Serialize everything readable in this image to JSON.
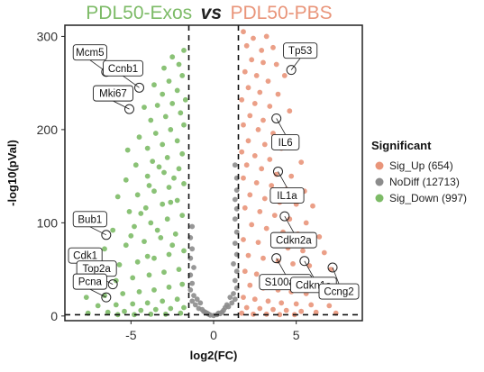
{
  "title": {
    "left": "PDL50-Exos",
    "middle": "vs",
    "right": "PDL50-PBS"
  },
  "colors": {
    "up": "#e9957a",
    "nodiff": "#8c8c8c",
    "down": "#7dbb67",
    "title_left": "#7dbb67",
    "title_right": "#e9957a"
  },
  "chart_data": {
    "type": "scatter",
    "xlabel": "log2(FC)",
    "ylabel": "-log10(pVal)",
    "xlim": [
      -9,
      9
    ],
    "ylim": [
      -5,
      312
    ],
    "x_ticks": [
      -5,
      0,
      5
    ],
    "y_ticks": [
      0,
      100,
      200,
      300
    ],
    "thresholds": {
      "x": [
        -1.5,
        1.5
      ],
      "y": 1.3
    },
    "grid": false,
    "legend": {
      "title": "Significant",
      "position": "right",
      "entries": [
        {
          "label": "Sig_Up (654)",
          "group": "up",
          "count": 654
        },
        {
          "label": "NoDiff (12713)",
          "group": "nodiff",
          "count": 12713
        },
        {
          "label": "Sig_Down (997)",
          "group": "down",
          "count": 997
        }
      ]
    },
    "annotations": [
      {
        "label": "Mcm5",
        "x": -6.5,
        "y": 262
      },
      {
        "label": "Ccnb1",
        "x": -4.5,
        "y": 245
      },
      {
        "label": "Mki67",
        "x": -5.1,
        "y": 222
      },
      {
        "label": "Bub1",
        "x": -6.5,
        "y": 87
      },
      {
        "label": "Cdk1",
        "x": -7.9,
        "y": 48
      },
      {
        "label": "Top2a",
        "x": -6.1,
        "y": 34
      },
      {
        "label": "Pcna",
        "x": -6.5,
        "y": 20
      },
      {
        "label": "Tp53",
        "x": 4.7,
        "y": 264
      },
      {
        "label": "IL6",
        "x": 3.8,
        "y": 212
      },
      {
        "label": "IL1a",
        "x": 3.9,
        "y": 155
      },
      {
        "label": "Cdkn2a",
        "x": 4.3,
        "y": 107
      },
      {
        "label": "S100a10",
        "x": 3.8,
        "y": 62
      },
      {
        "label": "Cdkn1a",
        "x": 5.5,
        "y": 59
      },
      {
        "label": "Ccng2",
        "x": 7.2,
        "y": 52
      }
    ],
    "series": [
      {
        "name": "Sig_Up",
        "group": "up",
        "points": [
          [
            1.8,
            305
          ],
          [
            2.4,
            298
          ],
          [
            3.2,
            300
          ],
          [
            2.0,
            290
          ],
          [
            2.9,
            285
          ],
          [
            3.6,
            288
          ],
          [
            2.3,
            275
          ],
          [
            3.0,
            272
          ],
          [
            3.8,
            270
          ],
          [
            1.9,
            262
          ],
          [
            2.6,
            258
          ],
          [
            4.3,
            258
          ],
          [
            3.3,
            252
          ],
          [
            2.1,
            245
          ],
          [
            2.8,
            240
          ],
          [
            3.9,
            238
          ],
          [
            1.7,
            232
          ],
          [
            2.5,
            228
          ],
          [
            3.4,
            225
          ],
          [
            4.6,
            220
          ],
          [
            2.2,
            215
          ],
          [
            3.0,
            210
          ],
          [
            1.8,
            205
          ],
          [
            2.7,
            200
          ],
          [
            3.6,
            196
          ],
          [
            4.8,
            192
          ],
          [
            2.1,
            188
          ],
          [
            3.1,
            184
          ],
          [
            4.1,
            180
          ],
          [
            1.7,
            176
          ],
          [
            2.5,
            172
          ],
          [
            3.4,
            168
          ],
          [
            5.3,
            165
          ],
          [
            2.0,
            162
          ],
          [
            2.9,
            158
          ],
          [
            3.8,
            152
          ],
          [
            4.7,
            150
          ],
          [
            1.8,
            148
          ],
          [
            2.6,
            143
          ],
          [
            3.5,
            140
          ],
          [
            4.4,
            136
          ],
          [
            5.5,
            134
          ],
          [
            2.2,
            130
          ],
          [
            3.1,
            126
          ],
          [
            4.0,
            122
          ],
          [
            5.0,
            120
          ],
          [
            6.0,
            118
          ],
          [
            1.9,
            116
          ],
          [
            2.8,
            112
          ],
          [
            3.7,
            108
          ],
          [
            4.6,
            104
          ],
          [
            5.6,
            100
          ],
          [
            2.3,
            98
          ],
          [
            3.2,
            94
          ],
          [
            4.2,
            90
          ],
          [
            5.1,
            88
          ],
          [
            6.4,
            85
          ],
          [
            1.8,
            82
          ],
          [
            2.7,
            79
          ],
          [
            3.6,
            76
          ],
          [
            4.5,
            73
          ],
          [
            5.4,
            70
          ],
          [
            6.7,
            68
          ],
          [
            2.1,
            65
          ],
          [
            3.0,
            62
          ],
          [
            3.9,
            59
          ],
          [
            4.8,
            56
          ],
          [
            5.8,
            54
          ],
          [
            7.1,
            50
          ],
          [
            1.9,
            48
          ],
          [
            2.6,
            45
          ],
          [
            3.4,
            42
          ],
          [
            4.3,
            40
          ],
          [
            5.2,
            38
          ],
          [
            6.2,
            36
          ],
          [
            2.2,
            33
          ],
          [
            3.0,
            30
          ],
          [
            3.9,
            28
          ],
          [
            4.7,
            26
          ],
          [
            5.6,
            24
          ],
          [
            6.6,
            22
          ],
          [
            1.8,
            20
          ],
          [
            2.5,
            18
          ],
          [
            3.3,
            16
          ],
          [
            4.1,
            14
          ],
          [
            5.0,
            13
          ],
          [
            5.9,
            12
          ],
          [
            7.0,
            11
          ],
          [
            2.0,
            9
          ],
          [
            2.8,
            8
          ],
          [
            3.6,
            7
          ],
          [
            4.4,
            6
          ],
          [
            5.3,
            5
          ],
          [
            6.2,
            4
          ],
          [
            7.4,
            3
          ],
          [
            1.7,
            3
          ],
          [
            2.4,
            2
          ],
          [
            3.2,
            2
          ],
          [
            4.0,
            1.5
          ],
          [
            4.9,
            1.5
          ]
        ]
      },
      {
        "name": "NoDiff",
        "group": "nodiff",
        "points": [
          [
            0.0,
            0.5
          ],
          [
            -0.3,
            2
          ],
          [
            0.3,
            3
          ],
          [
            -0.6,
            5
          ],
          [
            0.6,
            6
          ],
          [
            -0.9,
            8
          ],
          [
            0.9,
            10
          ],
          [
            -1.1,
            12
          ],
          [
            1.1,
            14
          ],
          [
            -1.3,
            16
          ],
          [
            1.3,
            18
          ],
          [
            -0.5,
            4
          ],
          [
            0.5,
            4
          ],
          [
            -1.2,
            22
          ],
          [
            1.2,
            24
          ],
          [
            -1.4,
            28
          ],
          [
            1.4,
            30
          ],
          [
            -1.0,
            18
          ],
          [
            1.0,
            20
          ],
          [
            -1.3,
            35
          ],
          [
            1.3,
            38
          ],
          [
            -1.4,
            44
          ],
          [
            1.4,
            48
          ],
          [
            -1.2,
            52
          ],
          [
            1.2,
            56
          ],
          [
            -1.4,
            62
          ],
          [
            1.4,
            66
          ],
          [
            -1.3,
            72
          ],
          [
            1.3,
            78
          ],
          [
            -1.4,
            84
          ],
          [
            1.4,
            90
          ],
          [
            -1.3,
            96
          ],
          [
            1.3,
            104
          ],
          [
            1.4,
            115
          ],
          [
            1.3,
            125
          ],
          [
            1.4,
            135
          ],
          [
            1.4,
            148
          ],
          [
            1.3,
            162
          ],
          [
            -0.8,
            14
          ],
          [
            0.8,
            12
          ],
          [
            -0.2,
            1
          ],
          [
            0.2,
            1.5
          ],
          [
            -0.4,
            3
          ],
          [
            0.4,
            2.5
          ],
          [
            -0.7,
            7
          ],
          [
            0.7,
            9
          ]
        ]
      },
      {
        "name": "Sig_Down",
        "group": "down",
        "points": [
          [
            -1.8,
            285
          ],
          [
            -2.5,
            278
          ],
          [
            -2.1,
            270
          ],
          [
            -3.0,
            266
          ],
          [
            -1.9,
            258
          ],
          [
            -2.7,
            252
          ],
          [
            -3.6,
            248
          ],
          [
            -2.2,
            242
          ],
          [
            -3.1,
            238
          ],
          [
            -1.7,
            232
          ],
          [
            -2.5,
            228
          ],
          [
            -3.4,
            226
          ],
          [
            -4.2,
            224
          ],
          [
            -2.0,
            218
          ],
          [
            -2.9,
            214
          ],
          [
            -3.8,
            210
          ],
          [
            -1.8,
            205
          ],
          [
            -2.6,
            200
          ],
          [
            -3.5,
            196
          ],
          [
            -4.5,
            192
          ],
          [
            -2.2,
            188
          ],
          [
            -3.1,
            184
          ],
          [
            -4.0,
            180
          ],
          [
            -5.2,
            178
          ],
          [
            -1.9,
            174
          ],
          [
            -2.8,
            170
          ],
          [
            -3.7,
            166
          ],
          [
            -4.7,
            162
          ],
          [
            -2.1,
            158
          ],
          [
            -3.0,
            154
          ],
          [
            -4.0,
            150
          ],
          [
            -5.3,
            146
          ],
          [
            -1.8,
            142
          ],
          [
            -2.7,
            138
          ],
          [
            -3.6,
            134
          ],
          [
            -4.6,
            130
          ],
          [
            -5.8,
            128
          ],
          [
            -2.2,
            124
          ],
          [
            -3.1,
            120
          ],
          [
            -4.1,
            116
          ],
          [
            -5.1,
            112
          ],
          [
            -1.9,
            108
          ],
          [
            -2.8,
            104
          ],
          [
            -3.8,
            100
          ],
          [
            -4.8,
            96
          ],
          [
            -6.1,
            92
          ],
          [
            -2.3,
            88
          ],
          [
            -3.2,
            84
          ],
          [
            -4.2,
            80
          ],
          [
            -5.3,
            76
          ],
          [
            -6.6,
            72
          ],
          [
            -1.8,
            70
          ],
          [
            -2.7,
            66
          ],
          [
            -3.6,
            62
          ],
          [
            -4.6,
            58
          ],
          [
            -5.7,
            55
          ],
          [
            -7.0,
            52
          ],
          [
            -2.1,
            50
          ],
          [
            -3.0,
            47
          ],
          [
            -3.9,
            44
          ],
          [
            -4.9,
            41
          ],
          [
            -5.9,
            38
          ],
          [
            -7.3,
            36
          ],
          [
            -1.9,
            34
          ],
          [
            -2.7,
            31
          ],
          [
            -3.6,
            28
          ],
          [
            -4.5,
            26
          ],
          [
            -5.5,
            24
          ],
          [
            -6.6,
            22
          ],
          [
            -7.7,
            20
          ],
          [
            -2.2,
            18
          ],
          [
            -3.1,
            16
          ],
          [
            -4.0,
            14
          ],
          [
            -4.9,
            13
          ],
          [
            -5.9,
            12
          ],
          [
            -7.0,
            11
          ],
          [
            -1.8,
            9
          ],
          [
            -2.6,
            8
          ],
          [
            -3.5,
            7
          ],
          [
            -4.4,
            6
          ],
          [
            -5.4,
            5
          ],
          [
            -6.4,
            4
          ],
          [
            -7.6,
            3
          ],
          [
            -2.0,
            3
          ],
          [
            -2.9,
            2
          ],
          [
            -3.8,
            2
          ],
          [
            -4.8,
            1.5
          ],
          [
            -5.8,
            1.5
          ],
          [
            -3.3,
            160
          ],
          [
            -2.4,
            148
          ],
          [
            -3.9,
            140
          ],
          [
            -2.6,
            122
          ],
          [
            -4.4,
            110
          ],
          [
            -3.4,
            92
          ],
          [
            -5.0,
            86
          ],
          [
            -2.5,
            76
          ],
          [
            -4.0,
            64
          ]
        ]
      }
    ]
  }
}
